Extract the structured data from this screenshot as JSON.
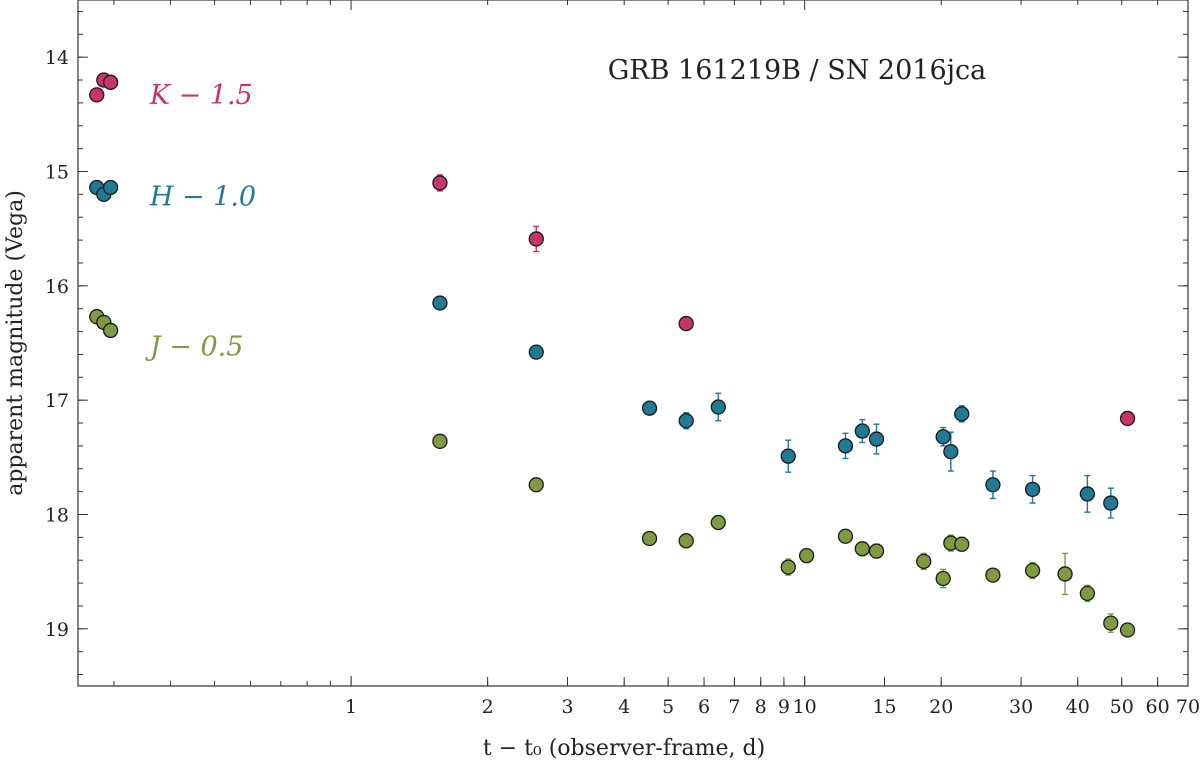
{
  "chart_data": {
    "type": "scatter",
    "title": "GRB 161219B / SN 2016jca",
    "xlabel": "t − t₀ (observer-frame, d)",
    "ylabel": "apparent magnitude (Vega)",
    "x_scale": "log",
    "xlim": [
      0.25,
      70
    ],
    "ylim": [
      19.5,
      13.5
    ],
    "y_inverted": true,
    "x_ticks": [
      {
        "value": 1,
        "label": "1"
      },
      {
        "value": 2,
        "label": "2"
      },
      {
        "value": 3,
        "label": "3"
      },
      {
        "value": 4,
        "label": "4"
      },
      {
        "value": 5,
        "label": "5"
      },
      {
        "value": 6,
        "label": "6"
      },
      {
        "value": 7,
        "label": "7"
      },
      {
        "value": 8,
        "label": "8"
      },
      {
        "value": 9,
        "label": "9"
      },
      {
        "value": 10,
        "label": "10"
      },
      {
        "value": 15,
        "label": "15"
      },
      {
        "value": 20,
        "label": "20"
      },
      {
        "value": 30,
        "label": "30"
      },
      {
        "value": 40,
        "label": "40"
      },
      {
        "value": 50,
        "label": "50"
      },
      {
        "value": 60,
        "label": "60"
      },
      {
        "value": 70,
        "label": "70"
      }
    ],
    "y_ticks": [
      {
        "value": 14,
        "label": "14"
      },
      {
        "value": 15,
        "label": "15"
      },
      {
        "value": 16,
        "label": "16"
      },
      {
        "value": 17,
        "label": "17"
      },
      {
        "value": 18,
        "label": "18"
      },
      {
        "value": 19,
        "label": "19"
      }
    ],
    "grid": false,
    "series": [
      {
        "name": "K − 1.5",
        "color": "#c8336a",
        "points": [
          {
            "x": 0.275,
            "y": 14.33,
            "err": 0
          },
          {
            "x": 0.285,
            "y": 14.2,
            "err": 0
          },
          {
            "x": 0.295,
            "y": 14.22,
            "err": 0
          },
          {
            "x": 1.57,
            "y": 15.1,
            "err": 0.07
          },
          {
            "x": 2.56,
            "y": 15.59,
            "err": 0.11
          },
          {
            "x": 5.48,
            "y": 16.33,
            "err": 0
          },
          {
            "x": 51.5,
            "y": 17.16,
            "err": 0
          }
        ]
      },
      {
        "name": "H − 1.0",
        "color": "#1f7a96",
        "points": [
          {
            "x": 0.275,
            "y": 15.14,
            "err": 0
          },
          {
            "x": 0.285,
            "y": 15.2,
            "err": 0
          },
          {
            "x": 0.295,
            "y": 15.14,
            "err": 0
          },
          {
            "x": 1.57,
            "y": 16.15,
            "err": 0
          },
          {
            "x": 2.56,
            "y": 16.58,
            "err": 0
          },
          {
            "x": 4.55,
            "y": 17.07,
            "err": 0.04
          },
          {
            "x": 5.48,
            "y": 17.18,
            "err": 0.07
          },
          {
            "x": 6.45,
            "y": 17.06,
            "err": 0.12
          },
          {
            "x": 9.2,
            "y": 17.49,
            "err": 0.14
          },
          {
            "x": 12.3,
            "y": 17.4,
            "err": 0.11
          },
          {
            "x": 13.4,
            "y": 17.27,
            "err": 0.1
          },
          {
            "x": 14.4,
            "y": 17.34,
            "err": 0.13
          },
          {
            "x": 20.2,
            "y": 17.32,
            "err": 0.08
          },
          {
            "x": 21.0,
            "y": 17.45,
            "err": 0.17
          },
          {
            "x": 22.2,
            "y": 17.12,
            "err": 0.07
          },
          {
            "x": 26.0,
            "y": 17.74,
            "err": 0.12
          },
          {
            "x": 31.8,
            "y": 17.78,
            "err": 0.12
          },
          {
            "x": 42.0,
            "y": 17.82,
            "err": 0.16
          },
          {
            "x": 47.3,
            "y": 17.9,
            "err": 0.13
          }
        ]
      },
      {
        "name": "J − 0.5",
        "color": "#7f9a41",
        "points": [
          {
            "x": 0.275,
            "y": 16.27,
            "err": 0
          },
          {
            "x": 0.285,
            "y": 16.32,
            "err": 0
          },
          {
            "x": 0.295,
            "y": 16.39,
            "err": 0
          },
          {
            "x": 1.57,
            "y": 17.36,
            "err": 0
          },
          {
            "x": 2.56,
            "y": 17.74,
            "err": 0
          },
          {
            "x": 4.55,
            "y": 18.21,
            "err": 0
          },
          {
            "x": 5.48,
            "y": 18.23,
            "err": 0
          },
          {
            "x": 6.45,
            "y": 18.07,
            "err": 0.06
          },
          {
            "x": 9.2,
            "y": 18.46,
            "err": 0.07
          },
          {
            "x": 10.1,
            "y": 18.36,
            "err": 0
          },
          {
            "x": 12.3,
            "y": 18.19,
            "err": 0
          },
          {
            "x": 13.4,
            "y": 18.3,
            "err": 0
          },
          {
            "x": 14.4,
            "y": 18.32,
            "err": 0.06
          },
          {
            "x": 18.3,
            "y": 18.41,
            "err": 0.07
          },
          {
            "x": 20.2,
            "y": 18.56,
            "err": 0.08
          },
          {
            "x": 21.0,
            "y": 18.25,
            "err": 0.07
          },
          {
            "x": 22.2,
            "y": 18.26,
            "err": 0.06
          },
          {
            "x": 26.0,
            "y": 18.53,
            "err": 0.05
          },
          {
            "x": 31.8,
            "y": 18.49,
            "err": 0.07
          },
          {
            "x": 37.5,
            "y": 18.52,
            "err": 0.18
          },
          {
            "x": 42.0,
            "y": 18.69,
            "err": 0.07
          },
          {
            "x": 47.3,
            "y": 18.95,
            "err": 0.08
          },
          {
            "x": 51.5,
            "y": 19.01,
            "err": 0
          }
        ]
      }
    ],
    "annotations": [
      {
        "text": "K − 1.5",
        "series": 0,
        "x": 0.36,
        "y": 14.33
      },
      {
        "text": "H − 1.0",
        "series": 1,
        "x": 0.36,
        "y": 15.22
      },
      {
        "text": "J − 0.5",
        "series": 2,
        "x": 0.36,
        "y": 16.53
      }
    ]
  }
}
